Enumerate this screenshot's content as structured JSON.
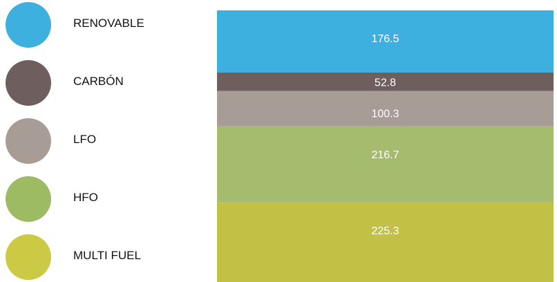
{
  "chart_data": {
    "type": "bar",
    "orientation": "stacked-vertical",
    "title": "",
    "xlabel": "",
    "ylabel": "",
    "grid": false,
    "legend_placement": "left",
    "series": [
      {
        "name": "RENOVABLE",
        "value": 176.5,
        "color": "#3db0df"
      },
      {
        "name": "CARBÓN",
        "value": 52.8,
        "color": "#6f5e5e"
      },
      {
        "name": "LFO",
        "value": 100.3,
        "color": "#a89c97"
      },
      {
        "name": "HFO",
        "value": 216.7,
        "color": "#a5bc6f"
      },
      {
        "name": "MULTI FUEL",
        "value": 225.3,
        "color": "#c3c046"
      }
    ]
  },
  "legend_swatch_colors": [
    "#3db0df",
    "#6f5e5e",
    "#a89c97",
    "#9dbb63",
    "#ccc944"
  ]
}
